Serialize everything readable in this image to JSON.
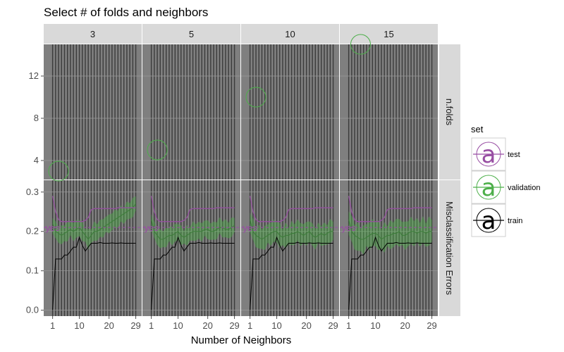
{
  "chart_data": {
    "type": "line",
    "title": "Select # of folds and neighbors",
    "xlabel": "Number of Neighbors",
    "x_ticks": [
      1,
      10,
      20,
      29
    ],
    "xlim": [
      -2,
      31
    ],
    "col_facets": [
      "3",
      "5",
      "10",
      "15"
    ],
    "row_facets": [
      "n.folds",
      "Misclassification Errors"
    ],
    "n_folds_panel": {
      "yticks": [
        "4",
        "8",
        "12"
      ],
      "ylim": [
        2.2,
        15.0
      ],
      "selected": [
        {
          "facet": "3",
          "k": 3,
          "n_folds": 3
        },
        {
          "facet": "5",
          "k": 3,
          "n_folds": 5
        },
        {
          "facet": "10",
          "k": 3,
          "n_folds": 10
        },
        {
          "facet": "15",
          "k": 5,
          "n_folds": 15
        }
      ]
    },
    "error_panel": {
      "yticks": [
        "0.0",
        "0.1",
        "0.2",
        "0.3"
      ],
      "ylim": [
        -0.015,
        0.33
      ],
      "annotation_text": "yes",
      "annotation_y": 0.21,
      "annotation_x": 1
    },
    "legend": {
      "title": "set",
      "entries": [
        {
          "label": "test",
          "color": "#984ea3"
        },
        {
          "label": "validation",
          "color": "#4daf4a"
        },
        {
          "label": "train",
          "color": "#000000"
        }
      ],
      "glyph": "a"
    },
    "colors": {
      "test": "#984ea3",
      "validation": "#4daf4a",
      "train": "#000000",
      "panel_bg": "#7f7f7f",
      "strip_bg": "#d9d9d9"
    },
    "series": {
      "train": {
        "x": [
          1,
          2,
          3,
          4,
          5,
          6,
          7,
          8,
          9,
          10,
          11,
          12,
          13,
          14,
          15,
          16,
          17,
          18,
          19,
          20,
          21,
          22,
          23,
          24,
          25,
          26,
          27,
          28,
          29
        ],
        "values": [
          0.0,
          0.13,
          0.13,
          0.13,
          0.14,
          0.14,
          0.15,
          0.16,
          0.16,
          0.185,
          0.165,
          0.15,
          0.16,
          0.17,
          0.17,
          0.17,
          0.172,
          0.17,
          0.17,
          0.17,
          0.171,
          0.17,
          0.17,
          0.171,
          0.17,
          0.17,
          0.17,
          0.17,
          0.17
        ]
      },
      "test": {
        "x": [
          1,
          2,
          3,
          4,
          5,
          6,
          7,
          8,
          9,
          10,
          11,
          12,
          13,
          14,
          15,
          16,
          17,
          18,
          19,
          20,
          21,
          22,
          23,
          24,
          25,
          26,
          27,
          28,
          29
        ],
        "values": [
          0.29,
          0.25,
          0.23,
          0.225,
          0.225,
          0.225,
          0.225,
          0.225,
          0.225,
          0.225,
          0.225,
          0.228,
          0.235,
          0.255,
          0.258,
          0.258,
          0.258,
          0.258,
          0.258,
          0.258,
          0.258,
          0.258,
          0.26,
          0.26,
          0.26,
          0.26,
          0.26,
          0.26,
          0.26
        ]
      },
      "validation": [
        {
          "facet": "3",
          "x": [
            1,
            2,
            3,
            4,
            5,
            6,
            7,
            8,
            9,
            10,
            11,
            12,
            13,
            14,
            15,
            16,
            17,
            18,
            19,
            20,
            21,
            22,
            23,
            24,
            25,
            26,
            27,
            28,
            29
          ],
          "values": [
            0.22,
            0.2,
            0.195,
            0.19,
            0.195,
            0.2,
            0.205,
            0.2,
            0.205,
            0.21,
            0.2,
            0.19,
            0.18,
            0.19,
            0.2,
            0.2,
            0.205,
            0.21,
            0.215,
            0.22,
            0.225,
            0.23,
            0.235,
            0.24,
            0.245,
            0.25,
            0.255,
            0.26,
            0.27
          ],
          "half_width": 0.02
        },
        {
          "facet": "5",
          "x": [
            1,
            2,
            3,
            4,
            5,
            6,
            7,
            8,
            9,
            10,
            11,
            12,
            13,
            14,
            15,
            16,
            17,
            18,
            19,
            20,
            21,
            22,
            23,
            24,
            25,
            26,
            27,
            28,
            29
          ],
          "values": [
            0.23,
            0.2,
            0.19,
            0.18,
            0.18,
            0.185,
            0.19,
            0.19,
            0.195,
            0.2,
            0.19,
            0.185,
            0.19,
            0.195,
            0.2,
            0.2,
            0.2,
            0.2,
            0.205,
            0.205,
            0.2,
            0.2,
            0.205,
            0.21,
            0.21,
            0.205,
            0.205,
            0.21,
            0.215
          ],
          "half_width": 0.02
        },
        {
          "facet": "10",
          "x": [
            1,
            2,
            3,
            4,
            5,
            6,
            7,
            8,
            9,
            10,
            11,
            12,
            13,
            14,
            15,
            16,
            17,
            18,
            19,
            20,
            21,
            22,
            23,
            24,
            25,
            26,
            27,
            28,
            29
          ],
          "values": [
            0.23,
            0.2,
            0.19,
            0.185,
            0.18,
            0.185,
            0.19,
            0.195,
            0.2,
            0.2,
            0.19,
            0.185,
            0.19,
            0.19,
            0.195,
            0.195,
            0.2,
            0.195,
            0.19,
            0.195,
            0.2,
            0.19,
            0.185,
            0.19,
            0.195,
            0.19,
            0.195,
            0.2,
            0.2
          ],
          "half_width": 0.025
        },
        {
          "facet": "15",
          "x": [
            1,
            2,
            3,
            4,
            5,
            6,
            7,
            8,
            9,
            10,
            11,
            12,
            13,
            14,
            15,
            16,
            17,
            18,
            19,
            20,
            21,
            22,
            23,
            24,
            25,
            26,
            27,
            28,
            29
          ],
          "values": [
            0.23,
            0.2,
            0.19,
            0.185,
            0.18,
            0.18,
            0.185,
            0.19,
            0.195,
            0.195,
            0.19,
            0.18,
            0.185,
            0.19,
            0.19,
            0.195,
            0.195,
            0.2,
            0.19,
            0.19,
            0.195,
            0.2,
            0.2,
            0.195,
            0.2,
            0.2,
            0.195,
            0.2,
            0.2
          ],
          "half_width": 0.03
        }
      ]
    }
  }
}
